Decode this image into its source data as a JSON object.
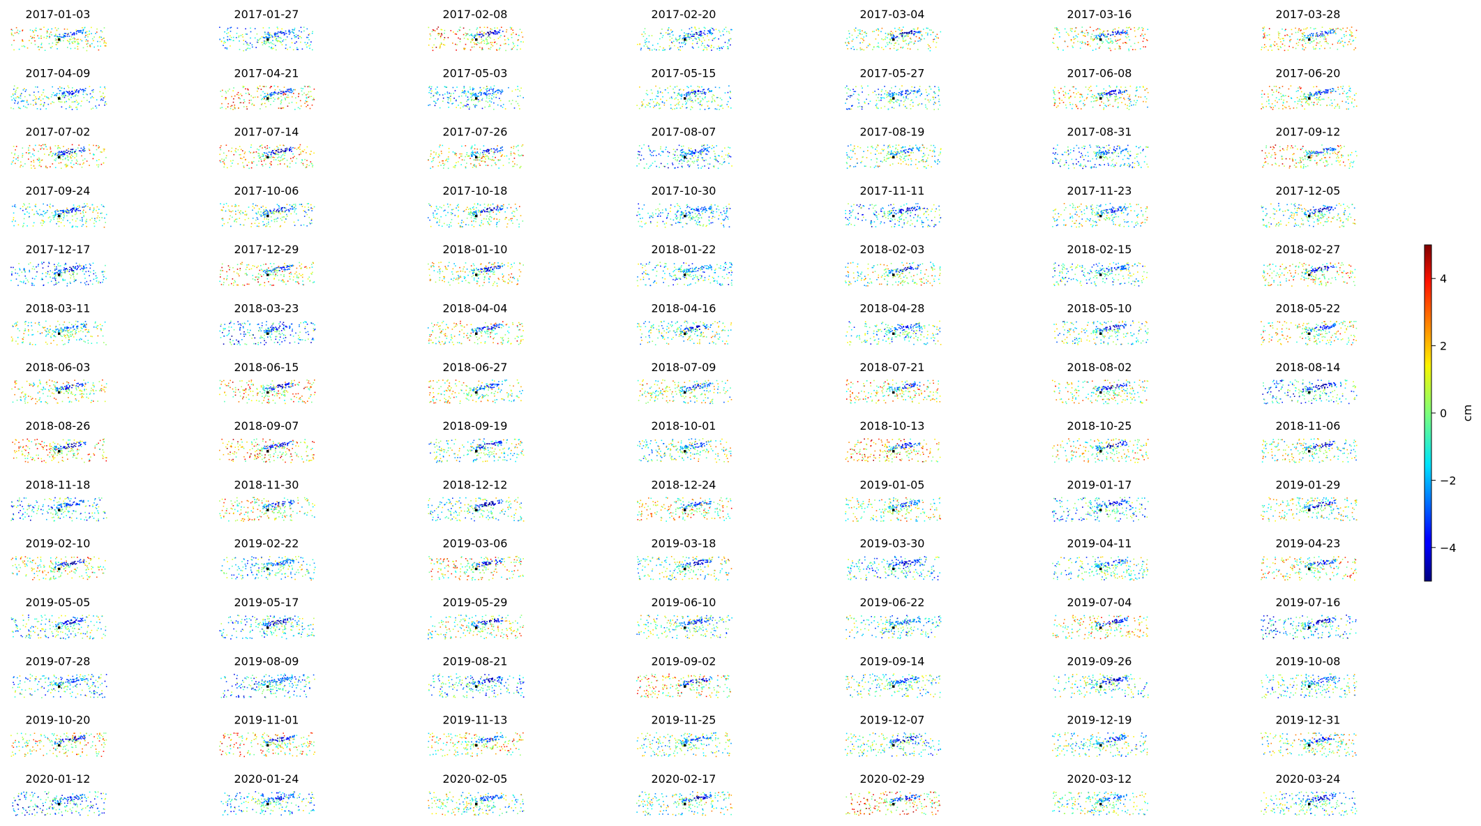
{
  "chart_data": {
    "type": "scatter",
    "subplot_titles": [
      "2017-01-03",
      "2017-01-27",
      "2017-02-08",
      "2017-02-20",
      "2017-03-04",
      "2017-03-16",
      "2017-03-28",
      "2017-04-09",
      "2017-04-21",
      "2017-05-03",
      "2017-05-15",
      "2017-05-27",
      "2017-06-08",
      "2017-06-20",
      "2017-07-02",
      "2017-07-14",
      "2017-07-26",
      "2017-08-07",
      "2017-08-19",
      "2017-08-31",
      "2017-09-12",
      "2017-09-24",
      "2017-10-06",
      "2017-10-18",
      "2017-10-30",
      "2017-11-11",
      "2017-11-23",
      "2017-12-05",
      "2017-12-17",
      "2017-12-29",
      "2018-01-10",
      "2018-01-22",
      "2018-02-03",
      "2018-02-15",
      "2018-02-27",
      "2018-03-11",
      "2018-03-23",
      "2018-04-04",
      "2018-04-16",
      "2018-04-28",
      "2018-05-10",
      "2018-05-22",
      "2018-06-03",
      "2018-06-15",
      "2018-06-27",
      "2018-07-09",
      "2018-07-21",
      "2018-08-02",
      "2018-08-14",
      "2018-08-26",
      "2018-09-07",
      "2018-09-19",
      "2018-10-01",
      "2018-10-13",
      "2018-10-25",
      "2018-11-06",
      "2018-11-18",
      "2018-11-30",
      "2018-12-12",
      "2018-12-24",
      "2019-01-05",
      "2019-01-17",
      "2019-01-29",
      "2019-02-10",
      "2019-02-22",
      "2019-03-06",
      "2019-03-18",
      "2019-03-30",
      "2019-04-11",
      "2019-04-23",
      "2019-05-05",
      "2019-05-17",
      "2019-05-29",
      "2019-06-10",
      "2019-06-22",
      "2019-07-04",
      "2019-07-16",
      "2019-07-28",
      "2019-08-09",
      "2019-08-21",
      "2019-09-02",
      "2019-09-14",
      "2019-09-26",
      "2019-10-08",
      "2019-10-20",
      "2019-11-01",
      "2019-11-13",
      "2019-11-25",
      "2019-12-07",
      "2019-12-19",
      "2019-12-31",
      "2020-01-12",
      "2020-01-24",
      "2020-02-05",
      "2020-02-17",
      "2020-02-29",
      "2020-03-12",
      "2020-03-24"
    ],
    "grid": {
      "rows": 14,
      "cols": 7
    },
    "axes_visible": false,
    "colorbar": {
      "label": "cm",
      "colormap": "jet",
      "range": [
        -5,
        5
      ],
      "ticks": [
        4,
        2,
        0,
        -2,
        -4
      ],
      "tick_labels": [
        "4",
        "2",
        "0",
        "−2",
        "−4"
      ]
    },
    "reference_point_color": "#000000"
  }
}
